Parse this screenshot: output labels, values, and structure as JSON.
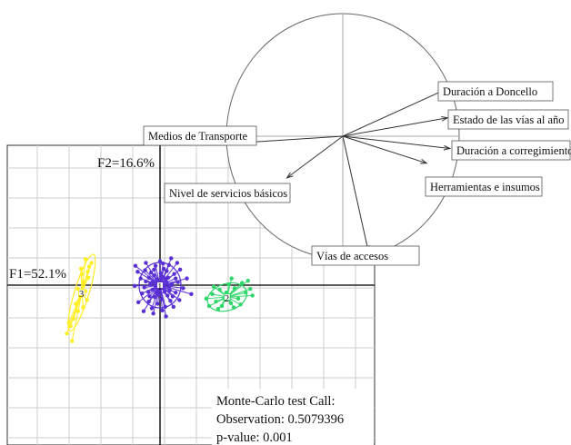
{
  "chart_data": {
    "type": "scatter",
    "axis_labels": {
      "f1": "F1=52.1%",
      "f2": "F2=16.6%"
    },
    "colors": {
      "group_1": "#5a2fd6",
      "group_2": "#2fd66a",
      "group_3": "#ffee22",
      "axis": "#222222",
      "grid": "#cccccc",
      "arrow": "#333333"
    },
    "groups": [
      {
        "name": "1",
        "center": [
          0,
          0
        ],
        "points": [
          [
            -0.4,
            0.8
          ],
          [
            0.3,
            1.1
          ],
          [
            0.9,
            0.4
          ],
          [
            1.2,
            -0.2
          ],
          [
            0.6,
            -0.9
          ],
          [
            -0.2,
            -1.3
          ],
          [
            -1.0,
            -0.6
          ],
          [
            -1.3,
            0.2
          ],
          [
            -0.8,
            1.3
          ],
          [
            0.1,
            1.6
          ],
          [
            1.1,
            1.0
          ],
          [
            1.6,
            0.1
          ],
          [
            1.0,
            -1.4
          ],
          [
            0.2,
            -1.9
          ],
          [
            -0.7,
            -1.6
          ],
          [
            -1.6,
            -0.9
          ],
          [
            -1.9,
            0.5
          ],
          [
            -1.2,
            1.7
          ],
          [
            0.5,
            2.2
          ],
          [
            1.9,
            1.5
          ],
          [
            2.4,
            0.4
          ],
          [
            2.1,
            -1.0
          ],
          [
            1.4,
            -2.1
          ],
          [
            -0.3,
            -2.5
          ],
          [
            -1.5,
            -2.2
          ],
          [
            -2.4,
            -1.1
          ],
          [
            -2.6,
            0.9
          ],
          [
            -2.0,
            2.0
          ],
          [
            -0.6,
            2.6
          ],
          [
            1.2,
            2.7
          ],
          [
            2.7,
            2.1
          ],
          [
            3.1,
            -0.4
          ],
          [
            2.6,
            -2.0
          ],
          [
            0.7,
            -2.9
          ],
          [
            -1.1,
            -3.1
          ],
          [
            -2.9,
            -2.3
          ],
          [
            -3.0,
            1.8
          ],
          [
            -0.2,
            0.2
          ],
          [
            0.4,
            -0.4
          ],
          [
            -0.6,
            -0.3
          ],
          [
            3.6,
            0.9
          ],
          [
            0.0,
            3.2
          ],
          [
            -3.4,
            -0.1
          ],
          [
            0.3,
            -3.4
          ],
          [
            1.8,
            -2.9
          ],
          [
            -1.9,
            3.0
          ],
          [
            2.3,
            3.0
          ],
          [
            4.2,
            -1.2
          ],
          [
            -0.9,
            -3.8
          ],
          [
            0.8,
            -4.2
          ],
          [
            -2.2,
            -3.5
          ],
          [
            1.5,
            3.6
          ],
          [
            -3.3,
            2.6
          ],
          [
            -1.0,
            0.4
          ],
          [
            0.7,
            0.9
          ],
          [
            -0.5,
            -1.0
          ],
          [
            1.3,
            -0.7
          ],
          [
            -1.5,
            1.0
          ],
          [
            0.9,
            1.9
          ],
          [
            -0.1,
            -0.7
          ],
          [
            2.1,
            0.9
          ],
          [
            -2.1,
            -0.3
          ],
          [
            0.4,
            2.9
          ],
          [
            -0.8,
            2.1
          ],
          [
            1.7,
            -1.5
          ],
          [
            -1.4,
            -1.5
          ]
        ]
      },
      {
        "name": "2",
        "center": [
          9.0,
          -1.6
        ],
        "points": [
          [
            7.0,
            -1.2
          ],
          [
            7.5,
            -2.2
          ],
          [
            8.0,
            -0.6
          ],
          [
            8.3,
            -2.8
          ],
          [
            8.9,
            -1.0
          ],
          [
            9.5,
            -2.4
          ],
          [
            10.0,
            -0.4
          ],
          [
            10.5,
            -1.8
          ],
          [
            11.0,
            0.3
          ],
          [
            11.5,
            -1.0
          ],
          [
            6.6,
            -2.8
          ],
          [
            7.8,
            -3.2
          ],
          [
            9.2,
            0.1
          ],
          [
            9.9,
            -3.0
          ],
          [
            10.8,
            -2.6
          ],
          [
            11.8,
            0.6
          ],
          [
            12.1,
            -0.5
          ],
          [
            8.6,
            -1.8
          ],
          [
            6.2,
            -1.8
          ],
          [
            12.4,
            -1.4
          ],
          [
            9.6,
            0.9
          ],
          [
            7.2,
            -0.2
          ]
        ]
      },
      {
        "name": "3",
        "center": [
          -10.5,
          -1.0
        ],
        "points": [
          [
            -10.0,
            3.5
          ],
          [
            -9.5,
            2.5
          ],
          [
            -10.5,
            1.5
          ],
          [
            -10.2,
            0.5
          ],
          [
            -11.0,
            -0.5
          ],
          [
            -10.7,
            -1.5
          ],
          [
            -11.3,
            -2.5
          ],
          [
            -11.0,
            -3.5
          ],
          [
            -11.6,
            -4.5
          ],
          [
            -12.0,
            -5.5
          ],
          [
            -12.5,
            -6.5
          ],
          [
            -9.6,
            1.0
          ],
          [
            -10.0,
            -0.8
          ],
          [
            -9.8,
            -2.0
          ],
          [
            -10.3,
            -3.0
          ],
          [
            -11.8,
            -7.5
          ],
          [
            -9.2,
            3.0
          ],
          [
            -9.7,
            1.8
          ],
          [
            -10.6,
            2.2
          ],
          [
            -12.2,
            -5.0
          ]
        ]
      }
    ],
    "variables": [
      {
        "name": "Duración a Doncello",
        "vec": [
          0.88,
          0.38
        ]
      },
      {
        "name": "Estado de las vías al año",
        "vec": [
          0.9,
          0.15
        ]
      },
      {
        "name": "Duración a corregimientos",
        "vec": [
          0.92,
          -0.1
        ]
      },
      {
        "name": "Herramientas e insumos",
        "vec": [
          0.72,
          -0.22
        ]
      },
      {
        "name": "Vías de accesos",
        "vec": [
          0.22,
          -0.94
        ]
      },
      {
        "name": "Nivel de servicios básicos",
        "vec": [
          -0.48,
          -0.34
        ]
      },
      {
        "name": "Medios de Transporte",
        "vec": [
          -0.82,
          -0.05
        ]
      }
    ],
    "test": {
      "title": "Monte-Carlo test Call:",
      "observation": "Observation: 0.5079396",
      "pvalue": "p-value: 0.001"
    }
  }
}
